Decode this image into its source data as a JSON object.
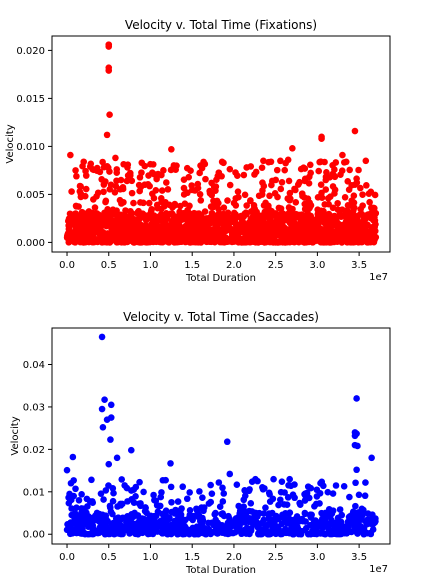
{
  "chart_data": [
    {
      "type": "scatter",
      "title": "Velocity v. Total Time (Fixations)",
      "xlabel": "Total Duration",
      "ylabel": "Velocity",
      "x_offset_label": "1e7",
      "xlim": [
        -0.18,
        3.87
      ],
      "ylim": [
        -0.001,
        0.0215
      ],
      "xticks": [
        0.0,
        0.5,
        1.0,
        1.5,
        2.0,
        2.5,
        3.0,
        3.5
      ],
      "xtick_labels": [
        "0.0",
        "0.5",
        "1.0",
        "1.5",
        "2.0",
        "2.5",
        "3.0",
        "3.5"
      ],
      "yticks": [
        0.0,
        0.005,
        0.01,
        0.015,
        0.02
      ],
      "ytick_labels": [
        "0.000",
        "0.005",
        "0.010",
        "0.015",
        "0.020"
      ],
      "grid": false,
      "color": "#ff0000",
      "highlight_points": [
        {
          "x": 0.5,
          "y": 0.0206
        },
        {
          "x": 0.5,
          "y": 0.0204
        },
        {
          "x": 0.5,
          "y": 0.0182
        },
        {
          "x": 0.5,
          "y": 0.0179
        },
        {
          "x": 0.51,
          "y": 0.0133
        },
        {
          "x": 3.45,
          "y": 0.0116
        },
        {
          "x": 0.48,
          "y": 0.0112
        },
        {
          "x": 3.05,
          "y": 0.011
        },
        {
          "x": 3.05,
          "y": 0.0108
        },
        {
          "x": 1.25,
          "y": 0.0097
        },
        {
          "x": 2.7,
          "y": 0.0098
        },
        {
          "x": 0.04,
          "y": 0.0091
        },
        {
          "x": 0.2,
          "y": 0.0084
        },
        {
          "x": 3.3,
          "y": 0.0091
        },
        {
          "x": 3.58,
          "y": 0.0085
        },
        {
          "x": 2.65,
          "y": 0.0086
        },
        {
          "x": 1.6,
          "y": 0.008
        },
        {
          "x": 0.58,
          "y": 0.0088
        }
      ],
      "series_envelope": {
        "x_range": [
          0.0,
          3.7
        ],
        "dense_band_y": [
          0.0,
          0.003
        ],
        "sparse_band_y": [
          0.003,
          0.0085
        ],
        "approx_point_count": 2000
      }
    },
    {
      "type": "scatter",
      "title": "Velocity v. Total Time (Saccades)",
      "xlabel": "Total Duration",
      "ylabel": "Velocity",
      "x_offset_label": "1e7",
      "xlim": [
        -0.18,
        3.87
      ],
      "ylim": [
        -0.0023,
        0.0486
      ],
      "xticks": [
        0.0,
        0.5,
        1.0,
        1.5,
        2.0,
        2.5,
        3.0,
        3.5
      ],
      "xtick_labels": [
        "0.0",
        "0.5",
        "1.0",
        "1.5",
        "2.0",
        "2.5",
        "3.0",
        "3.5"
      ],
      "yticks": [
        0.0,
        0.01,
        0.02,
        0.03,
        0.04
      ],
      "ytick_labels": [
        "0.00",
        "0.01",
        "0.02",
        "0.03",
        "0.04"
      ],
      "grid": false,
      "color": "#0000ff",
      "highlight_points": [
        {
          "x": 0.42,
          "y": 0.0465
        },
        {
          "x": 3.47,
          "y": 0.032
        },
        {
          "x": 0.45,
          "y": 0.0317
        },
        {
          "x": 0.53,
          "y": 0.0305
        },
        {
          "x": 0.42,
          "y": 0.0295
        },
        {
          "x": 0.53,
          "y": 0.0275
        },
        {
          "x": 0.48,
          "y": 0.027
        },
        {
          "x": 0.43,
          "y": 0.0252
        },
        {
          "x": 3.45,
          "y": 0.024
        },
        {
          "x": 3.47,
          "y": 0.0237
        },
        {
          "x": 3.45,
          "y": 0.0232
        },
        {
          "x": 0.52,
          "y": 0.0223
        },
        {
          "x": 1.92,
          "y": 0.0218
        },
        {
          "x": 3.45,
          "y": 0.021
        },
        {
          "x": 3.48,
          "y": 0.0208
        },
        {
          "x": 0.77,
          "y": 0.0198
        },
        {
          "x": 0.07,
          "y": 0.0182
        },
        {
          "x": 3.65,
          "y": 0.018
        },
        {
          "x": 0.6,
          "y": 0.018
        },
        {
          "x": 1.24,
          "y": 0.0167
        },
        {
          "x": 0.5,
          "y": 0.0165
        },
        {
          "x": 0.0,
          "y": 0.0151
        },
        {
          "x": 3.47,
          "y": 0.0152
        },
        {
          "x": 1.95,
          "y": 0.0142
        },
        {
          "x": 0.03,
          "y": 0.0095
        },
        {
          "x": 0.08,
          "y": 0.009
        }
      ],
      "series_envelope": {
        "x_range": [
          0.0,
          3.7
        ],
        "dense_band_y": [
          0.0,
          0.005
        ],
        "sparse_band_y": [
          0.005,
          0.013
        ],
        "approx_point_count": 900
      }
    }
  ]
}
